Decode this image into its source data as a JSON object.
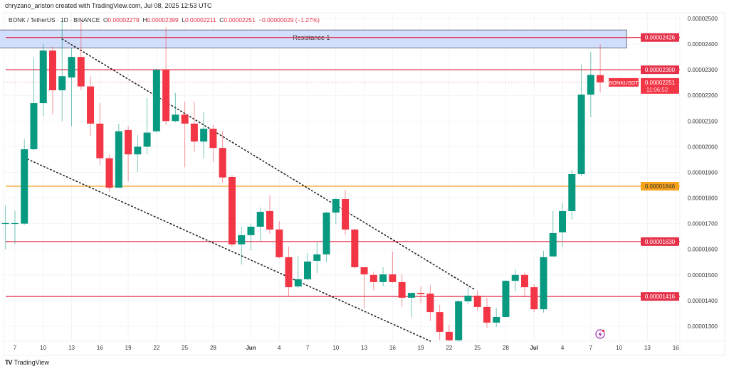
{
  "header": {
    "credit": "chryzano_ariston created with TradingView.com, Jul 08, 2025 12:53 UTC"
  },
  "legend": {
    "symbol": "BONK / TetherUS · 1D · BINANCE",
    "o_label": "O",
    "o": "0.00002279",
    "h_label": "H",
    "h": "0.00002399",
    "l_label": "L",
    "l": "0.00002211",
    "c_label": "C",
    "c": "0.00002251",
    "change": "−0.00000029 (−1.27%)"
  },
  "footer": {
    "brand": "TradingView",
    "logo": "TV"
  },
  "colors": {
    "up": "#089981",
    "down": "#f23645",
    "support": "#f7a21b",
    "zone": "#c9d8fb",
    "line": "#e5324a",
    "icon": "#9c27b0"
  },
  "chart_data": {
    "type": "candlestick",
    "symbol_tag": "BONKUSDT",
    "price_unit": "1e-6 USDT",
    "start_date": "2025-05-06",
    "ylim": [
      12.4,
      25.2
    ],
    "price_ticks": [
      "0.00002500",
      "0.00002400",
      "0.00002300",
      "0.00002200",
      "0.00002100",
      "0.00002000",
      "0.00001900",
      "0.00001800",
      "0.00001700",
      "0.00001600",
      "0.00001500",
      "0.00001400",
      "0.00001300"
    ],
    "date_ticks": [
      {
        "label": "7",
        "day": 1
      },
      {
        "label": "10",
        "day": 4
      },
      {
        "label": "13",
        "day": 7
      },
      {
        "label": "16",
        "day": 10
      },
      {
        "label": "19",
        "day": 13
      },
      {
        "label": "22",
        "day": 16
      },
      {
        "label": "25",
        "day": 19
      },
      {
        "label": "28",
        "day": 22
      },
      {
        "label": "Jun",
        "day": 26,
        "bold": true
      },
      {
        "label": "4",
        "day": 29
      },
      {
        "label": "7",
        "day": 32
      },
      {
        "label": "10",
        "day": 35
      },
      {
        "label": "13",
        "day": 38
      },
      {
        "label": "16",
        "day": 41
      },
      {
        "label": "19",
        "day": 44
      },
      {
        "label": "22",
        "day": 47
      },
      {
        "label": "25",
        "day": 50
      },
      {
        "label": "28",
        "day": 53
      },
      {
        "label": "Jul",
        "day": 56,
        "bold": true
      },
      {
        "label": "4",
        "day": 59
      },
      {
        "label": "7",
        "day": 62
      },
      {
        "label": "10",
        "day": 65
      },
      {
        "label": "13",
        "day": 68
      },
      {
        "label": "16",
        "day": 71
      }
    ],
    "candles_ohlc": [
      [
        17.0,
        17.7,
        16.0,
        17.02
      ],
      [
        17.0,
        17.5,
        16.2,
        17.02
      ],
      [
        17.0,
        20.3,
        16.95,
        19.9
      ],
      [
        19.9,
        23.45,
        19.85,
        21.7
      ],
      [
        21.7,
        24.0,
        21.2,
        23.75
      ],
      [
        23.75,
        23.9,
        21.25,
        22.2
      ],
      [
        22.2,
        24.95,
        21.0,
        22.75
      ],
      [
        22.7,
        23.85,
        20.8,
        23.5
      ],
      [
        23.5,
        24.95,
        22.2,
        22.35
      ],
      [
        22.35,
        22.75,
        20.4,
        20.9
      ],
      [
        20.9,
        21.7,
        19.3,
        19.55
      ],
      [
        19.55,
        19.7,
        18.25,
        18.4
      ],
      [
        18.4,
        20.9,
        18.4,
        20.6
      ],
      [
        20.65,
        20.8,
        18.65,
        19.7
      ],
      [
        19.7,
        20.45,
        19.0,
        20.0
      ],
      [
        20.0,
        21.9,
        19.7,
        20.55
      ],
      [
        20.6,
        23.05,
        20.55,
        23.0
      ],
      [
        23.0,
        24.65,
        20.85,
        21.0
      ],
      [
        21.0,
        22.1,
        20.95,
        21.25
      ],
      [
        21.25,
        21.75,
        19.2,
        20.9
      ],
      [
        20.9,
        21.75,
        19.8,
        20.2
      ],
      [
        20.2,
        21.35,
        19.55,
        20.7
      ],
      [
        20.7,
        20.85,
        19.4,
        19.95
      ],
      [
        19.95,
        20.6,
        18.6,
        18.8
      ],
      [
        18.82,
        18.9,
        16.1,
        16.19
      ],
      [
        16.19,
        16.88,
        15.4,
        16.55
      ],
      [
        16.55,
        17.0,
        15.95,
        16.88
      ],
      [
        16.88,
        17.63,
        16.3,
        17.46
      ],
      [
        17.49,
        18.1,
        16.6,
        16.77
      ],
      [
        16.77,
        17.1,
        15.65,
        15.69
      ],
      [
        15.69,
        16.1,
        14.16,
        14.52
      ],
      [
        14.55,
        15.74,
        14.5,
        14.83
      ],
      [
        14.83,
        15.85,
        14.8,
        15.52
      ],
      [
        15.55,
        16.27,
        15.08,
        15.8
      ],
      [
        15.8,
        17.45,
        15.5,
        17.43
      ],
      [
        17.43,
        18.0,
        16.99,
        17.96
      ],
      [
        17.96,
        18.32,
        16.55,
        16.77
      ],
      [
        16.77,
        16.8,
        15.24,
        15.3
      ],
      [
        15.3,
        15.3,
        13.72,
        15.02
      ],
      [
        15.0,
        15.13,
        14.41,
        14.72
      ],
      [
        14.72,
        15.3,
        14.55,
        15.02
      ],
      [
        15.02,
        15.91,
        14.69,
        14.72
      ],
      [
        14.72,
        15.02,
        13.75,
        14.11
      ],
      [
        14.11,
        14.3,
        13.33,
        14.3
      ],
      [
        14.3,
        14.55,
        13.9,
        14.25
      ],
      [
        14.27,
        14.6,
        13.2,
        13.55
      ],
      [
        13.55,
        13.83,
        12.47,
        12.78
      ],
      [
        12.78,
        13.05,
        12.42,
        12.45
      ],
      [
        12.45,
        14.03,
        12.4,
        13.97
      ],
      [
        13.97,
        14.55,
        13.86,
        14.19
      ],
      [
        14.19,
        14.38,
        13.61,
        13.75
      ],
      [
        13.75,
        14.11,
        12.94,
        13.14
      ],
      [
        13.14,
        13.72,
        12.97,
        13.36
      ],
      [
        13.36,
        14.8,
        13.35,
        14.77
      ],
      [
        14.77,
        15.22,
        14.36,
        15.0
      ],
      [
        15.0,
        15.1,
        14.13,
        14.52
      ],
      [
        14.52,
        14.63,
        13.55,
        13.66
      ],
      [
        13.66,
        15.94,
        13.53,
        15.69
      ],
      [
        15.72,
        17.49,
        15.72,
        16.63
      ],
      [
        16.66,
        17.79,
        16.1,
        17.49
      ],
      [
        17.49,
        19.1,
        17.16,
        18.93
      ],
      [
        18.93,
        23.2,
        18.85,
        22.03
      ],
      [
        22.03,
        23.7,
        21.15,
        22.8
      ],
      [
        22.79,
        23.99,
        22.11,
        22.51
      ]
    ],
    "levels": [
      {
        "price": 24.26,
        "label": "0.00002426",
        "kind": "resistance"
      },
      {
        "price": 23.0,
        "label": "0.00002300",
        "kind": "resistance"
      },
      {
        "price": 18.46,
        "label": "0.00001846",
        "kind": "support-orange"
      },
      {
        "price": 16.3,
        "label": "0.00001630",
        "kind": "resistance"
      },
      {
        "price": 14.16,
        "label": "0.00001416",
        "kind": "resistance"
      }
    ],
    "zone": {
      "label": "Resistance 1",
      "top": 24.55,
      "bottom": 23.85,
      "start_day": -1,
      "end_day": 65.8
    },
    "trendlines": [
      {
        "from": {
          "day": 6,
          "price": 24.2
        },
        "to": {
          "day": 49.8,
          "price": 14.41
        }
      },
      {
        "from": {
          "day": 2,
          "price": 19.57
        },
        "to": {
          "day": 45,
          "price": 12.42
        }
      }
    ],
    "last_price": {
      "price": 22.51,
      "label": "0.00002251",
      "countdown": "11:06:52"
    }
  }
}
